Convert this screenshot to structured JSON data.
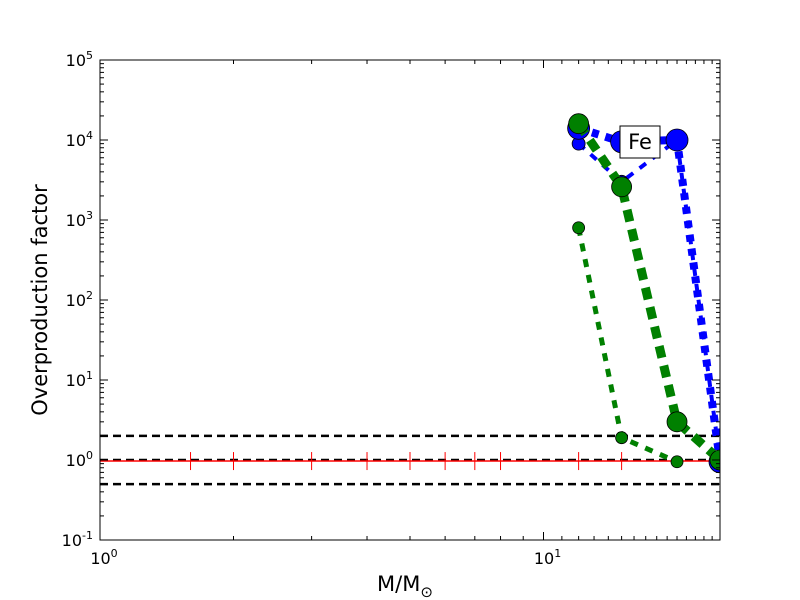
{
  "chart_data": {
    "type": "line",
    "xscale": "log",
    "yscale": "log",
    "xlim": [
      1,
      25
    ],
    "ylim": [
      0.1,
      100000
    ],
    "xlabel": {
      "base": "M/M",
      "sub": "⊙"
    },
    "ylabel": "Overproduction factor",
    "x_ticks": [
      {
        "base": "10",
        "exp": "0",
        "value": 1
      },
      {
        "base": "10",
        "exp": "1",
        "value": 10
      }
    ],
    "y_ticks": [
      {
        "base": "10",
        "exp": "-1",
        "value": 0.1
      },
      {
        "base": "10",
        "exp": "0",
        "value": 1
      },
      {
        "base": "10",
        "exp": "1",
        "value": 10
      },
      {
        "base": "10",
        "exp": "2",
        "value": 100
      },
      {
        "base": "10",
        "exp": "3",
        "value": 1000
      },
      {
        "base": "10",
        "exp": "4",
        "value": 10000
      },
      {
        "base": "10",
        "exp": "5",
        "value": 100000
      }
    ],
    "annotation": "Fe",
    "reference_lines": [
      0.5,
      1,
      2
    ],
    "baseline": {
      "y": 0.97,
      "x_marks": [
        1.6,
        2,
        3,
        4,
        5,
        6,
        7,
        8,
        12,
        15
      ]
    },
    "series": [
      {
        "color": "#0000ff",
        "marker_size": 6.5,
        "stroke_width": 4,
        "dash": "8,8",
        "points": [
          [
            12,
            9000
          ],
          [
            15,
            3000
          ],
          [
            20,
            10000
          ],
          [
            25,
            1
          ]
        ]
      },
      {
        "color": "#0000ff",
        "marker_size": 11,
        "stroke_width": 8,
        "dash": "7,7",
        "points": [
          [
            12,
            14000
          ],
          [
            15,
            9500
          ],
          [
            20,
            10000
          ],
          [
            25,
            0.95
          ]
        ]
      },
      {
        "color": "#008000",
        "marker_size": 6,
        "stroke_width": 5,
        "dash": "8,8",
        "points": [
          [
            12,
            800
          ],
          [
            15,
            1.9
          ],
          [
            20,
            0.95
          ]
        ]
      },
      {
        "color": "#008000",
        "marker_size": 10,
        "stroke_width": 9,
        "dash": "12,8",
        "points": [
          [
            12,
            16000
          ],
          [
            15,
            2600
          ],
          [
            20,
            3
          ],
          [
            25,
            1
          ]
        ]
      }
    ]
  }
}
